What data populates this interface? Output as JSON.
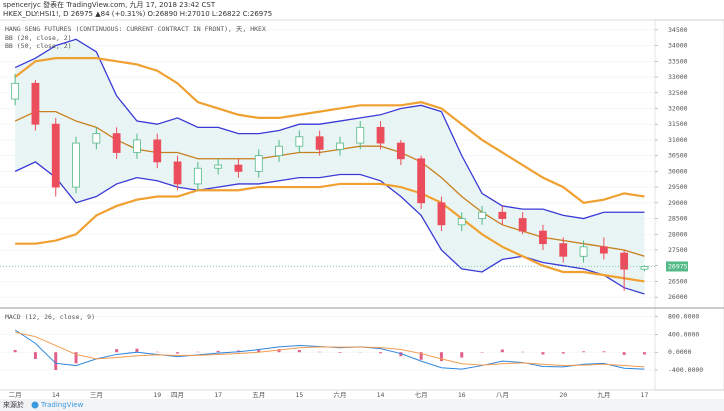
{
  "header": {
    "line1": "spencerjyc 發表在 TradingView.com, 九月 17, 2018 23:42 CST",
    "line2": "HKEX_DLY:HSI1!, D 26975 ▲84 (+0.31%) O:26890 H:27010 L:26822 C:26975"
  },
  "footer": {
    "source": "來源於",
    "brand": "TradingView"
  },
  "chart_data": [
    {
      "type": "candlestick",
      "title": "HANG SENG FUTURES (CONTINUOUS: CURRENT CONTRACT IN FRONT), 天, HKEX",
      "categories": [
        "二月",
        null,
        "14",
        null,
        "三月",
        null,
        null,
        "19",
        "四月",
        null,
        "17",
        null,
        "五月",
        null,
        "15",
        null,
        "六月",
        null,
        "14",
        null,
        "七月",
        null,
        "16",
        null,
        "八月",
        null,
        null,
        "20",
        null,
        "九月",
        null,
        "17"
      ],
      "open": [
        32300,
        32800,
        31500,
        29500,
        30900,
        31200,
        30600,
        31000,
        30300,
        29600,
        30100,
        30200,
        30000,
        30500,
        30800,
        31100,
        30700,
        30900,
        31400,
        30900,
        30400,
        29000,
        28300,
        28500,
        28700,
        28500,
        28100,
        27700,
        27300,
        27600,
        27400,
        26890
      ],
      "high": [
        33100,
        32900,
        31700,
        31100,
        31400,
        31400,
        31200,
        31200,
        30500,
        30300,
        30400,
        30400,
        30700,
        31000,
        31300,
        31300,
        31100,
        31600,
        31600,
        31000,
        30500,
        29200,
        28700,
        28900,
        28900,
        28700,
        28300,
        27900,
        27800,
        27900,
        27500,
        27010
      ],
      "low": [
        32100,
        31300,
        29200,
        29300,
        30700,
        30400,
        30400,
        30100,
        29400,
        29400,
        29900,
        29800,
        29800,
        30300,
        30600,
        30500,
        30500,
        30700,
        30700,
        30200,
        28800,
        28100,
        28100,
        28300,
        28300,
        28000,
        27500,
        27100,
        27100,
        27200,
        26200,
        26822
      ],
      "close": [
        32800,
        31500,
        29500,
        30900,
        31200,
        30600,
        31000,
        30300,
        29600,
        30100,
        30200,
        30000,
        30500,
        30800,
        31100,
        30700,
        30900,
        31400,
        30900,
        30400,
        29000,
        28300,
        28500,
        28700,
        28500,
        28100,
        27700,
        27300,
        27600,
        27400,
        26891,
        26975
      ],
      "up_color": "#53b987",
      "down_color": "#eb4d5c",
      "indicators": [
        {
          "name": "BB (20, close, 2)",
          "color": "#3a3ad6",
          "basis_color": "#c87f1e",
          "fill": "#e3f2f1",
          "upper": [
            33300,
            33600,
            34000,
            34200,
            33800,
            32400,
            31600,
            31500,
            31700,
            31400,
            31400,
            31200,
            31200,
            31300,
            31500,
            31500,
            31600,
            31700,
            31800,
            32000,
            32100,
            31900,
            30500,
            29300,
            28900,
            28800,
            28800,
            28600,
            28500,
            28700,
            28700,
            28700
          ],
          "basis": [
            31600,
            31900,
            31900,
            31600,
            31400,
            31000,
            30700,
            30600,
            30600,
            30400,
            30400,
            30400,
            30400,
            30500,
            30600,
            30600,
            30700,
            30800,
            30800,
            30600,
            30300,
            29800,
            29200,
            28700,
            28300,
            28100,
            27900,
            27800,
            27700,
            27600,
            27500,
            27300
          ],
          "lower": [
            30000,
            30300,
            29800,
            29000,
            29200,
            29600,
            29800,
            29700,
            29500,
            29400,
            29500,
            29600,
            29600,
            29700,
            29800,
            29800,
            29900,
            29900,
            29700,
            29200,
            28600,
            27500,
            26900,
            26800,
            27200,
            27300,
            27100,
            27000,
            26900,
            26700,
            26300,
            26100
          ]
        },
        {
          "name": "BB (50, close, 2)",
          "color": "#f0a030",
          "upper": [
            33000,
            33500,
            33600,
            33600,
            33600,
            33500,
            33400,
            33200,
            32800,
            32200,
            32000,
            31800,
            31700,
            31700,
            31800,
            31900,
            32000,
            32100,
            32100,
            32100,
            32200,
            32000,
            31500,
            31000,
            30600,
            30200,
            29800,
            29500,
            29000,
            29100,
            29300,
            29200
          ],
          "lower": [
            27700,
            27700,
            27800,
            28000,
            28600,
            28900,
            29100,
            29200,
            29200,
            29400,
            29400,
            29400,
            29500,
            29500,
            29500,
            29500,
            29600,
            29600,
            29600,
            29500,
            29300,
            29000,
            28500,
            28000,
            27600,
            27300,
            27000,
            26800,
            26800,
            26700,
            26600,
            26500
          ]
        }
      ],
      "ylim": [
        25750,
        34750
      ],
      "yticks": [
        26000,
        26500,
        27000,
        27500,
        28000,
        28500,
        29000,
        29500,
        30000,
        30500,
        31000,
        31500,
        32000,
        32500,
        33000,
        33500,
        34000,
        34500
      ]
    },
    {
      "type": "macd",
      "title": "MACD (12, 26, close, 9)",
      "macd": [
        500,
        200,
        -250,
        -300,
        -150,
        -50,
        0,
        -50,
        -100,
        -60,
        -20,
        10,
        60,
        120,
        150,
        130,
        100,
        120,
        80,
        -30,
        -200,
        -350,
        -380,
        -300,
        -200,
        -230,
        -320,
        -330,
        -270,
        -250,
        -360,
        -380
      ],
      "signal": [
        450,
        350,
        150,
        -50,
        -150,
        -120,
        -80,
        -60,
        -70,
        -70,
        -50,
        -30,
        0,
        50,
        100,
        120,
        115,
        115,
        105,
        60,
        -30,
        -150,
        -260,
        -290,
        -260,
        -240,
        -270,
        -300,
        -290,
        -270,
        -300,
        -330
      ],
      "histogram": [
        50,
        -150,
        -400,
        -250,
        0,
        70,
        80,
        10,
        -30,
        10,
        30,
        40,
        60,
        70,
        50,
        10,
        -15,
        5,
        -25,
        -90,
        -170,
        -200,
        -120,
        -10,
        60,
        10,
        -50,
        -30,
        20,
        20,
        -60,
        -50
      ],
      "macd_color": "#2e86de",
      "signal_color": "#f39c50",
      "histogram_color": "#e0608a",
      "ylim": [
        -850,
        950
      ],
      "yticks": [
        {
          "value": 800,
          "label": "800.0000"
        },
        {
          "value": 400,
          "label": "400.0000"
        },
        {
          "value": 0,
          "label": "0.0000"
        },
        {
          "value": -400,
          "label": "-400.0000"
        }
      ]
    }
  ]
}
